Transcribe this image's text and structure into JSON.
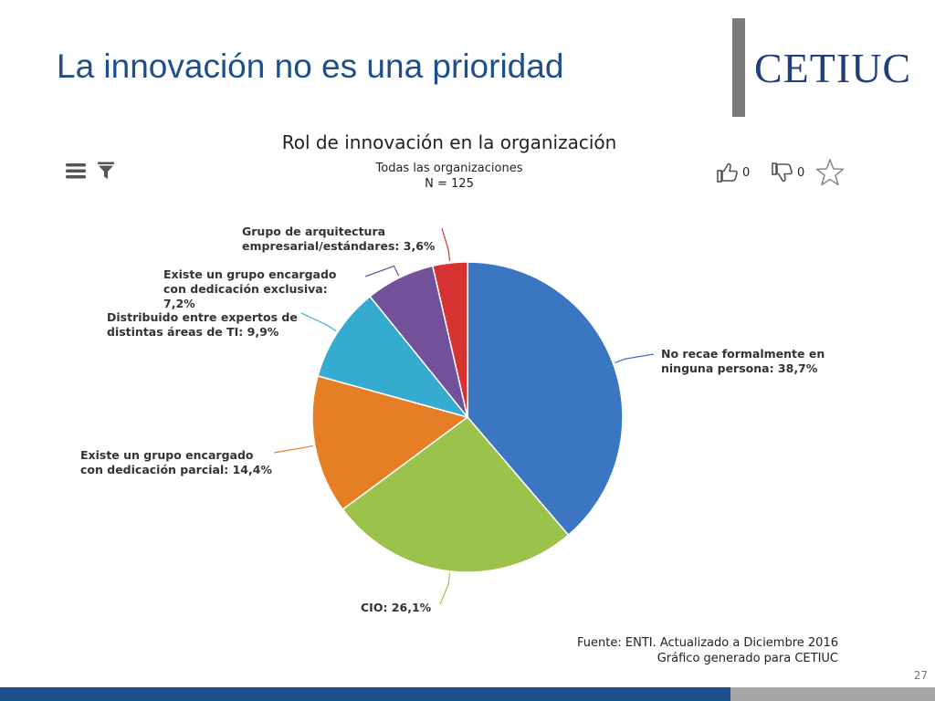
{
  "slide": {
    "title": "La innovación no es una prioridad",
    "logo": "CETIUC",
    "page_number": "27"
  },
  "toolbar": {
    "menu_icon": "hamburger-menu-icon",
    "filter_icon": "filter-funnel-icon",
    "like_count": "0",
    "dislike_count": "0",
    "star_icon": "star-outline-icon"
  },
  "source": {
    "line1": "Fuente: ENTI. Actualizado a Diciembre 2016",
    "line2": "Gráfico generado para CETIUC"
  },
  "chart_data": {
    "type": "pie",
    "title": "Rol de innovación en la organización",
    "subtitle": [
      "Todas las organizaciones",
      "N = 125"
    ],
    "slices": [
      {
        "label": [
          "No recae formalmente en",
          "ninguna persona: 38,7%"
        ],
        "value": 38.7,
        "color": "#3b76c2"
      },
      {
        "label": [
          "CIO: 26,1%"
        ],
        "value": 26.1,
        "color": "#9bc24a"
      },
      {
        "label": [
          "Existe un grupo encargado",
          "con dedicación parcial: 14,4%"
        ],
        "value": 14.4,
        "color": "#e57e25"
      },
      {
        "label": [
          "Distribuido entre expertos de",
          "distintas áreas de TI: 9,9%"
        ],
        "value": 9.9,
        "color": "#36abd0"
      },
      {
        "label": [
          "Existe un grupo encargado",
          "con dedicación exclusiva:",
          "7,2%"
        ],
        "value": 7.2,
        "color": "#72509a"
      },
      {
        "label": [
          "Grupo de arquitectura",
          "empresarial/estándares: 3,6%"
        ],
        "value": 3.6,
        "color": "#d63232"
      }
    ]
  }
}
